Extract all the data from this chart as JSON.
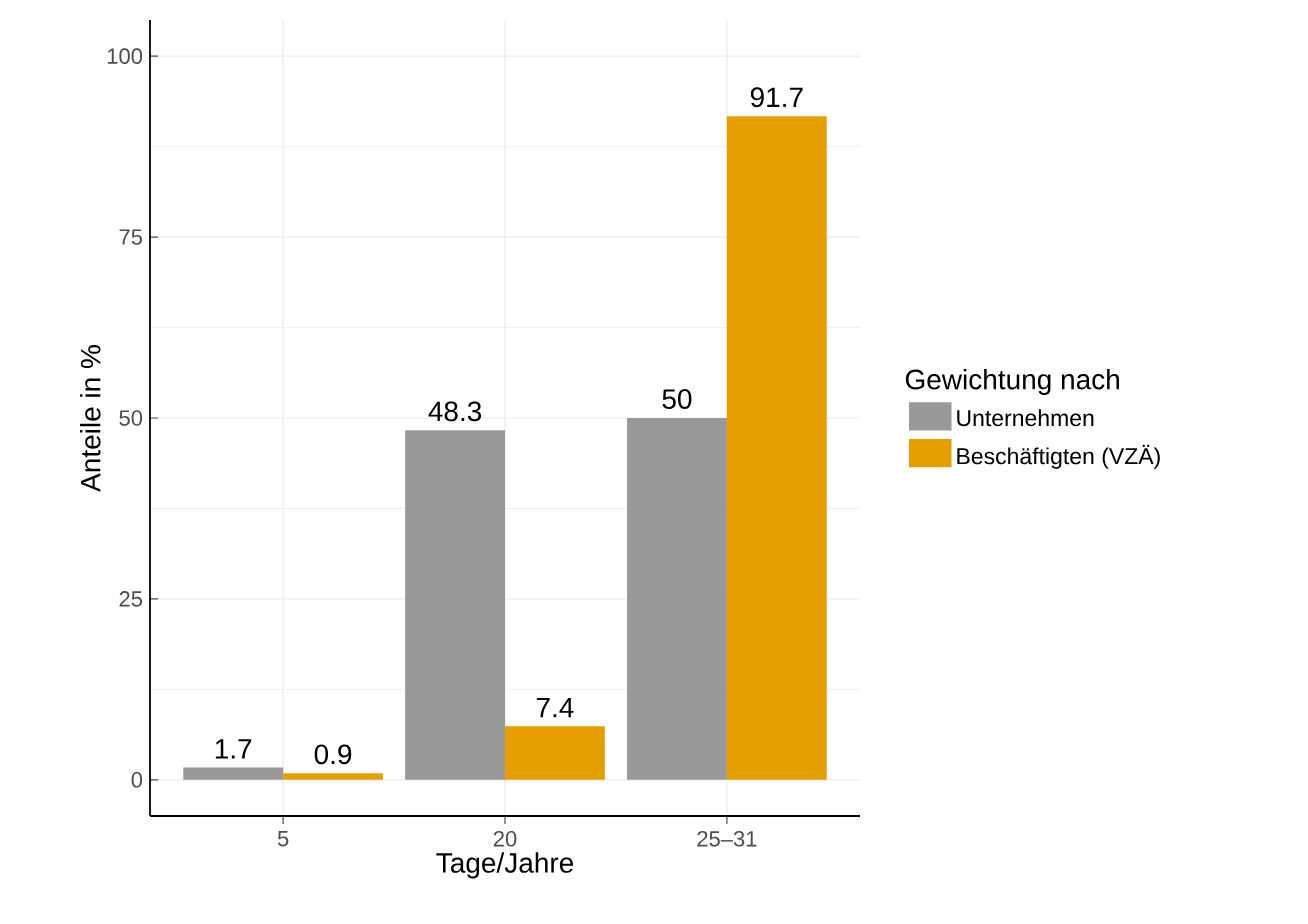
{
  "chart_data": {
    "type": "bar",
    "xlabel": "Tage/Jahre",
    "ylabel": "Anteile in %",
    "legend_title": "Gewichtung nach",
    "categories": [
      "5",
      "20",
      "25–31"
    ],
    "series": [
      {
        "name": "Unternehmen",
        "color": "#999999",
        "values": [
          1.7,
          48.3,
          50
        ]
      },
      {
        "name": "Beschäftigten (VZÄ)",
        "color": "#e69f00",
        "values": [
          0.9,
          7.4,
          91.7
        ]
      }
    ],
    "ylim": [
      -5,
      105
    ],
    "yticks": [
      0,
      25,
      50,
      75,
      100
    ],
    "grid": true,
    "legend": "right",
    "data_labels": true
  }
}
